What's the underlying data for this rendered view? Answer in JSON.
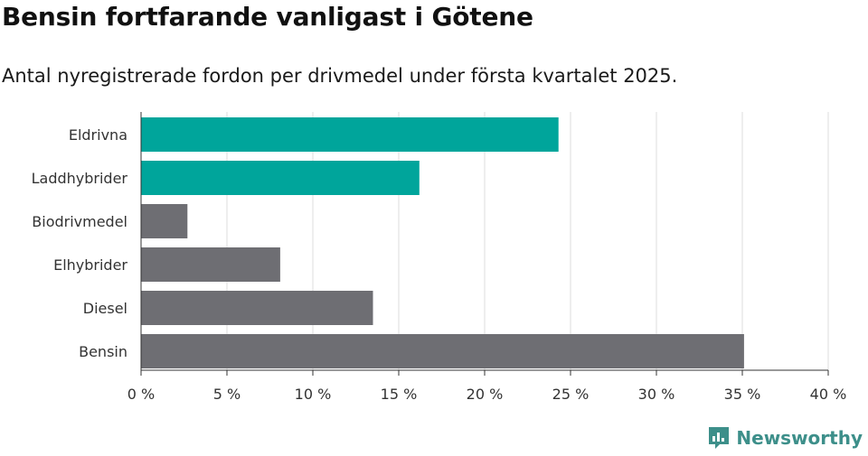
{
  "header": {
    "title": "Bensin fortfarande vanligast i Götene",
    "subtitle": "Antal nyregistrerade fordon per drivmedel under första kvartalet 2025."
  },
  "brand": {
    "name": "Newsworthy",
    "icon": "newsworthy-logo-icon",
    "color": "#3d8f8a"
  },
  "chart_data": {
    "type": "bar",
    "orientation": "horizontal",
    "categories": [
      "Eldrivna",
      "Laddhybrider",
      "Biodrivmedel",
      "Elhybrider",
      "Diesel",
      "Bensin"
    ],
    "values": [
      24.3,
      16.2,
      2.7,
      8.1,
      13.5,
      35.1
    ],
    "colors": [
      "#00a59b",
      "#00a59b",
      "#6e6e73",
      "#6e6e73",
      "#6e6e73",
      "#6e6e73"
    ],
    "xlim": [
      0,
      40
    ],
    "xticks": [
      0,
      5,
      10,
      15,
      20,
      25,
      30,
      35,
      40
    ],
    "xtick_labels": [
      "0 %",
      "5 %",
      "10 %",
      "15 %",
      "20 %",
      "25 %",
      "30 %",
      "35 %",
      "40 %"
    ],
    "grid": true,
    "gridline_color": "#dddddd",
    "axis_color": "#333333"
  }
}
